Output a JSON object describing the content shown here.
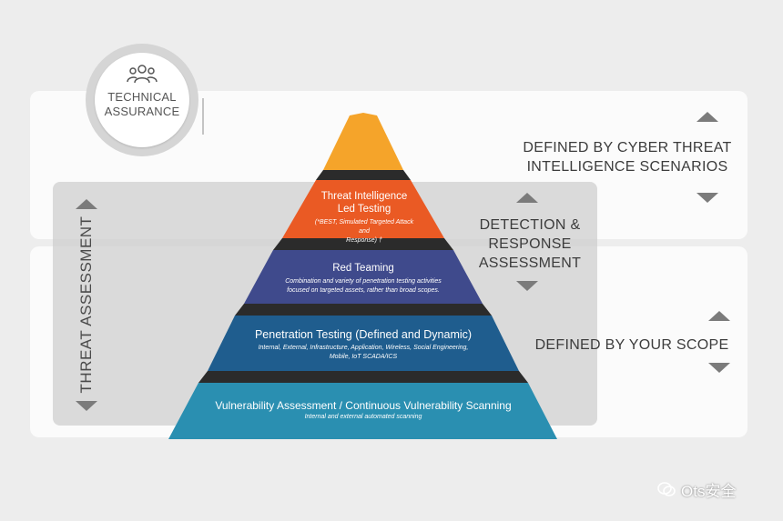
{
  "badge": {
    "line1": "TECHNICAL",
    "line2": "ASSURANCE",
    "icon": "people-icon"
  },
  "side_label": "THREAT ASSESSMENT",
  "captions": {
    "top_line1": "DEFINED BY CYBER THREAT",
    "top_line2": "INTELLIGENCE SCENARIOS",
    "middle_line1": "DETECTION &",
    "middle_line2": "RESPONSE",
    "middle_line3": "ASSESSMENT",
    "bottom": "DEFINED BY YOUR SCOPE"
  },
  "tiers": [
    {
      "title_line1": "Threat Intelligence",
      "title_line2": "Led Testing",
      "desc_line1": "(*BEST, Simulated Targeted Attack and",
      "desc_line2": "Response) †",
      "color": "#ea5a24"
    },
    {
      "title": "Red Teaming",
      "desc_line1": "Combination and variety of penetration testing activities",
      "desc_line2": "focused on targeted assets, rather than broad scopes.",
      "color": "#3f4a8c"
    },
    {
      "title": "Penetration Testing (Defined and Dynamic)",
      "desc_line1": "Internal, External, Infrastructure, Application, Wireless, Social Engineering,",
      "desc_line2": "Mobile, IoT SCADA/ICS",
      "color": "#1f5d8e"
    },
    {
      "title": "Vulnerability Assessment / Continuous Vulnerability Scanning",
      "desc": "Internal and external automated scanning",
      "color": "#2a8fb1"
    }
  ],
  "apex_color": "#f5a42a",
  "watermark": "Ots安全"
}
